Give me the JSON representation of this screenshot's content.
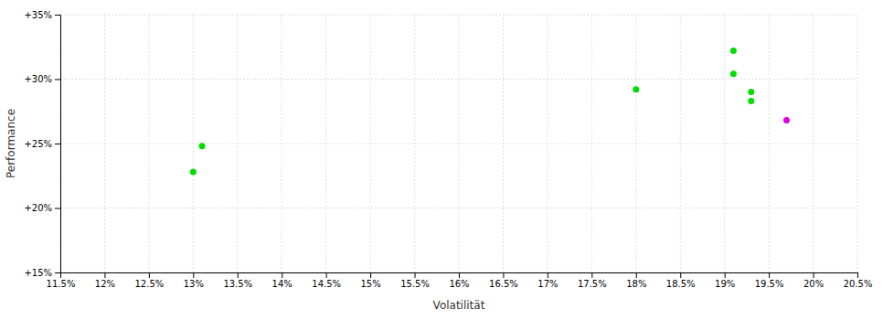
{
  "chart_data": {
    "type": "scatter",
    "xlabel": "Volatilität",
    "ylabel": "Performance",
    "xlim": [
      0.115,
      0.205
    ],
    "ylim": [
      0.15,
      0.35
    ],
    "xticks": [
      {
        "value": 0.115,
        "label": "11.5%"
      },
      {
        "value": 0.12,
        "label": "12%"
      },
      {
        "value": 0.125,
        "label": "12.5%"
      },
      {
        "value": 0.13,
        "label": "13%"
      },
      {
        "value": 0.135,
        "label": "13.5%"
      },
      {
        "value": 0.14,
        "label": "14%"
      },
      {
        "value": 0.145,
        "label": "14.5%"
      },
      {
        "value": 0.15,
        "label": "15%"
      },
      {
        "value": 0.155,
        "label": "15.5%"
      },
      {
        "value": 0.16,
        "label": "16%"
      },
      {
        "value": 0.165,
        "label": "16.5%"
      },
      {
        "value": 0.17,
        "label": "17%"
      },
      {
        "value": 0.175,
        "label": "17.5%"
      },
      {
        "value": 0.18,
        "label": "18%"
      },
      {
        "value": 0.185,
        "label": "18.5%"
      },
      {
        "value": 0.19,
        "label": "19%"
      },
      {
        "value": 0.195,
        "label": "19.5%"
      },
      {
        "value": 0.2,
        "label": "20%"
      },
      {
        "value": 0.205,
        "label": "20.5%"
      }
    ],
    "yticks": [
      {
        "value": 0.15,
        "label": "+15%"
      },
      {
        "value": 0.2,
        "label": "+20%"
      },
      {
        "value": 0.25,
        "label": "+25%"
      },
      {
        "value": 0.3,
        "label": "+30%"
      },
      {
        "value": 0.35,
        "label": "+35%"
      }
    ],
    "grid": true,
    "series": [
      {
        "color": "#00dd00",
        "x": [
          0.131,
          0.13,
          0.18,
          0.191,
          0.191,
          0.193,
          0.193
        ],
        "values": [
          0.248,
          0.228,
          0.292,
          0.322,
          0.304,
          0.29,
          0.283
        ]
      },
      {
        "color": "#dd00dd",
        "x": [
          0.197
        ],
        "values": [
          0.268
        ]
      }
    ]
  }
}
